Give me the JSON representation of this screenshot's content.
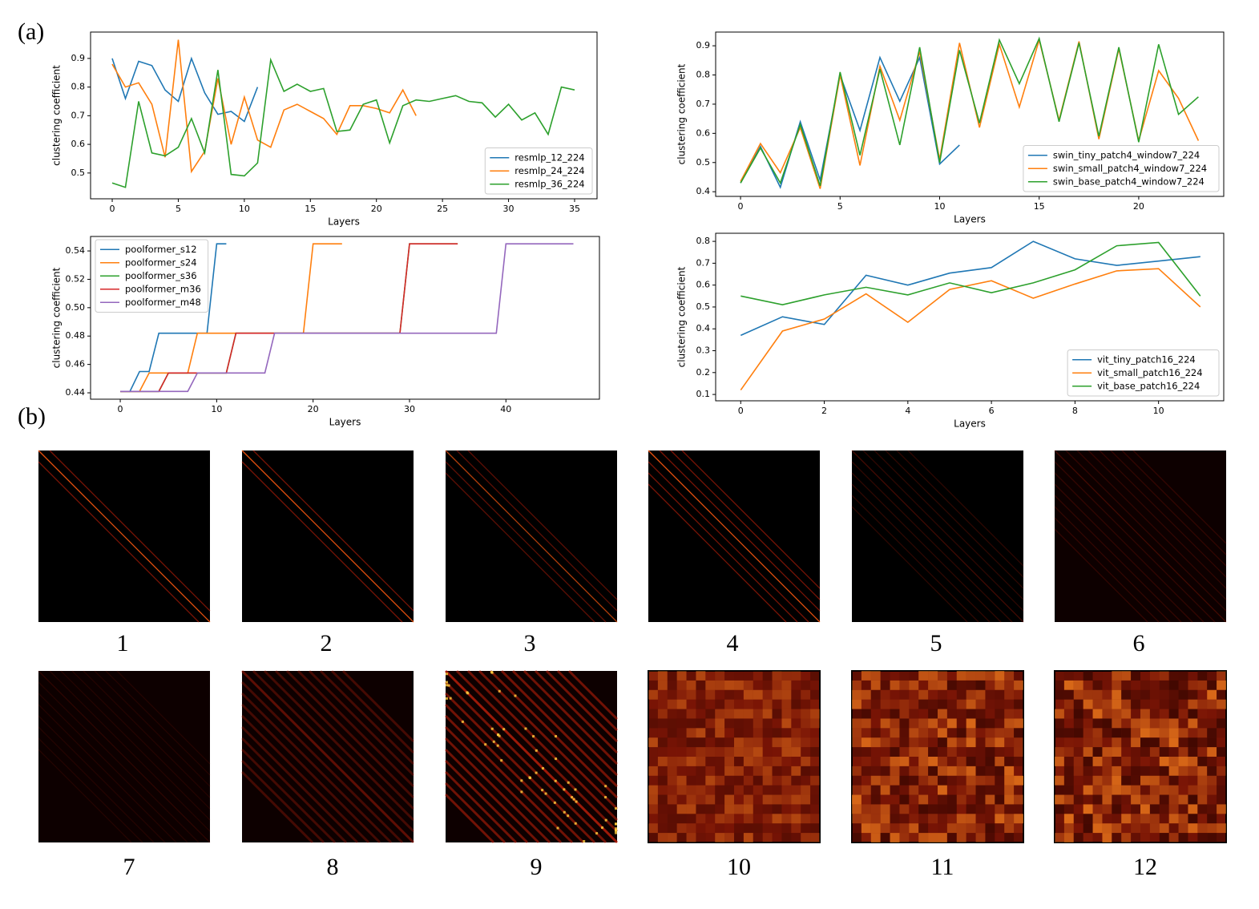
{
  "panel_a_label": "(a)",
  "panel_b_label": "(b)",
  "chart_data": [
    {
      "type": "line",
      "x_label": "Layers",
      "y_label": "clustering coefficient",
      "xlim": [
        -1.64,
        36.7
      ],
      "ylim": [
        0.41,
        0.992
      ],
      "xticks": [
        0,
        5,
        10,
        15,
        20,
        25,
        30,
        35
      ],
      "yticks": [
        0.5,
        0.6,
        0.7,
        0.8,
        0.9
      ],
      "legend": "lower right",
      "series": [
        {
          "name": "resmlp_12_224",
          "color": "#1f77b4",
          "x": [
            0,
            1,
            2,
            3,
            4,
            5,
            6,
            7,
            8,
            9,
            10,
            11
          ],
          "values": [
            0.9,
            0.76,
            0.89,
            0.875,
            0.79,
            0.75,
            0.9,
            0.78,
            0.705,
            0.715,
            0.68,
            0.8
          ]
        },
        {
          "name": "resmlp_24_224",
          "color": "#ff7f0e",
          "x": [
            0,
            1,
            2,
            3,
            4,
            5,
            6,
            7,
            8,
            9,
            10,
            11,
            12,
            13,
            14,
            15,
            16,
            17,
            18,
            19,
            20,
            21,
            22,
            23
          ],
          "values": [
            0.88,
            0.8,
            0.815,
            0.74,
            0.555,
            0.965,
            0.505,
            0.575,
            0.83,
            0.6,
            0.765,
            0.615,
            0.59,
            0.72,
            0.74,
            0.715,
            0.69,
            0.635,
            0.735,
            0.735,
            0.725,
            0.71,
            0.79,
            0.7
          ]
        },
        {
          "name": "resmlp_36_224",
          "color": "#2ca02c",
          "x": [
            0,
            1,
            2,
            3,
            4,
            5,
            6,
            7,
            8,
            9,
            10,
            11,
            12,
            13,
            14,
            15,
            16,
            17,
            18,
            19,
            20,
            21,
            22,
            23,
            24,
            25,
            26,
            27,
            28,
            29,
            30,
            31,
            32,
            33,
            34,
            35
          ],
          "values": [
            0.465,
            0.45,
            0.75,
            0.57,
            0.56,
            0.59,
            0.69,
            0.57,
            0.86,
            0.495,
            0.49,
            0.535,
            0.895,
            0.785,
            0.81,
            0.785,
            0.795,
            0.645,
            0.65,
            0.74,
            0.755,
            0.605,
            0.735,
            0.755,
            0.75,
            0.76,
            0.77,
            0.75,
            0.745,
            0.695,
            0.74,
            0.685,
            0.71,
            0.635,
            0.8,
            0.79
          ]
        }
      ]
    },
    {
      "type": "line",
      "x_label": "Layers",
      "y_label": "clustering coefficient",
      "xlim": [
        -1.25,
        24.27
      ],
      "ylim": [
        0.384,
        0.947
      ],
      "xticks": [
        0,
        5,
        10,
        15,
        20
      ],
      "yticks": [
        0.4,
        0.5,
        0.6,
        0.7,
        0.8,
        0.9
      ],
      "legend": "lower right",
      "series": [
        {
          "name": "swin_tiny_patch4_window7_224",
          "color": "#1f77b4",
          "x": [
            0,
            1,
            2,
            3,
            4,
            5,
            6,
            7,
            8,
            9,
            10,
            11
          ],
          "values": [
            0.43,
            0.555,
            0.415,
            0.64,
            0.44,
            0.8,
            0.61,
            0.86,
            0.71,
            0.86,
            0.495,
            0.56
          ]
        },
        {
          "name": "swin_small_patch4_window7_224",
          "color": "#ff7f0e",
          "x": [
            0,
            1,
            2,
            3,
            4,
            5,
            6,
            7,
            8,
            9,
            10,
            11,
            12,
            13,
            14,
            15,
            16,
            17,
            18,
            19,
            20,
            21,
            22,
            23
          ],
          "values": [
            0.435,
            0.565,
            0.465,
            0.62,
            0.41,
            0.8,
            0.49,
            0.83,
            0.645,
            0.88,
            0.51,
            0.91,
            0.62,
            0.905,
            0.69,
            0.92,
            0.645,
            0.915,
            0.58,
            0.89,
            0.575,
            0.815,
            0.72,
            0.575
          ]
        },
        {
          "name": "swin_base_patch4_window7_224",
          "color": "#2ca02c",
          "x": [
            0,
            1,
            2,
            3,
            4,
            5,
            6,
            7,
            8,
            9,
            10,
            11,
            12,
            13,
            14,
            15,
            16,
            17,
            18,
            19,
            20,
            21,
            22,
            23
          ],
          "values": [
            0.43,
            0.55,
            0.43,
            0.63,
            0.42,
            0.81,
            0.525,
            0.82,
            0.56,
            0.895,
            0.5,
            0.885,
            0.635,
            0.92,
            0.77,
            0.925,
            0.64,
            0.91,
            0.59,
            0.895,
            0.57,
            0.905,
            0.665,
            0.725
          ]
        }
      ]
    },
    {
      "type": "line",
      "x_label": "Layers",
      "y_label": "clustering coefficient",
      "xlim": [
        -3.08,
        49.7
      ],
      "ylim": [
        0.4355,
        0.5502
      ],
      "xticks": [
        0,
        10,
        20,
        30,
        40
      ],
      "yticks": [
        0.44,
        0.46,
        0.48,
        {
          "value": 0.5,
          "label": "0.50"
        },
        0.52,
        0.54
      ],
      "legend": "upper left",
      "series": [
        {
          "name": "poolformer_s12",
          "color": "#1f77b4",
          "x": [
            0,
            1,
            2,
            3,
            4,
            5,
            6,
            7,
            8,
            9,
            10,
            11
          ],
          "values": [
            0.441,
            0.441,
            0.455,
            0.455,
            0.482,
            0.482,
            0.482,
            0.482,
            0.482,
            0.482,
            0.545,
            0.545
          ]
        },
        {
          "name": "poolformer_s24",
          "color": "#ff7f0e",
          "x": [
            0,
            1,
            2,
            3,
            4,
            5,
            6,
            7,
            8,
            9,
            10,
            11,
            12,
            13,
            14,
            15,
            16,
            17,
            18,
            19,
            20,
            21,
            22,
            23
          ],
          "values": [
            0.441,
            0.441,
            0.441,
            0.454,
            0.454,
            0.454,
            0.454,
            0.454,
            0.482,
            0.482,
            0.482,
            0.482,
            0.482,
            0.482,
            0.482,
            0.482,
            0.482,
            0.482,
            0.482,
            0.482,
            0.545,
            0.545,
            0.545,
            0.545
          ]
        },
        {
          "name": "poolformer_s36",
          "color": "#2ca02c",
          "x": [
            0,
            1,
            2,
            3,
            4,
            5,
            6,
            7,
            8,
            9,
            10,
            11,
            12,
            13,
            14,
            15,
            16,
            17,
            18,
            19,
            20,
            21,
            22,
            23,
            24,
            25,
            26,
            27,
            28,
            29,
            30,
            31,
            32,
            33,
            34,
            35
          ],
          "values": [
            0.441,
            0.441,
            0.441,
            0.441,
            0.441,
            0.454,
            0.454,
            0.454,
            0.454,
            0.454,
            0.454,
            0.454,
            0.482,
            0.482,
            0.482,
            0.482,
            0.482,
            0.482,
            0.482,
            0.482,
            0.482,
            0.482,
            0.482,
            0.482,
            0.482,
            0.482,
            0.482,
            0.482,
            0.482,
            0.482,
            0.545,
            0.545,
            0.545,
            0.545,
            0.545,
            0.545
          ]
        },
        {
          "name": "poolformer_m36",
          "color": "#d62728",
          "x": [
            0,
            1,
            2,
            3,
            4,
            5,
            6,
            7,
            8,
            9,
            10,
            11,
            12,
            13,
            14,
            15,
            16,
            17,
            18,
            19,
            20,
            21,
            22,
            23,
            24,
            25,
            26,
            27,
            28,
            29,
            30,
            31,
            32,
            33,
            34,
            35
          ],
          "values": [
            0.441,
            0.441,
            0.441,
            0.441,
            0.441,
            0.454,
            0.454,
            0.454,
            0.454,
            0.454,
            0.454,
            0.454,
            0.482,
            0.482,
            0.482,
            0.482,
            0.482,
            0.482,
            0.482,
            0.482,
            0.482,
            0.482,
            0.482,
            0.482,
            0.482,
            0.482,
            0.482,
            0.482,
            0.482,
            0.482,
            0.545,
            0.545,
            0.545,
            0.545,
            0.545,
            0.545
          ]
        },
        {
          "name": "poolformer_m48",
          "color": "#9467bd",
          "x": [
            0,
            1,
            2,
            3,
            4,
            5,
            6,
            7,
            8,
            9,
            10,
            11,
            12,
            13,
            14,
            15,
            16,
            17,
            18,
            19,
            20,
            21,
            22,
            23,
            24,
            25,
            26,
            27,
            28,
            29,
            30,
            31,
            32,
            33,
            34,
            35,
            36,
            37,
            38,
            39,
            40,
            41,
            42,
            43,
            44,
            45,
            46,
            47
          ],
          "values": [
            0.441,
            0.441,
            0.441,
            0.441,
            0.441,
            0.441,
            0.441,
            0.441,
            0.454,
            0.454,
            0.454,
            0.454,
            0.454,
            0.454,
            0.454,
            0.454,
            0.482,
            0.482,
            0.482,
            0.482,
            0.482,
            0.482,
            0.482,
            0.482,
            0.482,
            0.482,
            0.482,
            0.482,
            0.482,
            0.482,
            0.482,
            0.482,
            0.482,
            0.482,
            0.482,
            0.482,
            0.482,
            0.482,
            0.482,
            0.482,
            0.545,
            0.545,
            0.545,
            0.545,
            0.545,
            0.545,
            0.545,
            0.545
          ]
        }
      ]
    },
    {
      "type": "line",
      "x_label": "Layers",
      "y_label": "clustering coefficient",
      "xlim": [
        -0.6,
        11.56
      ],
      "ylim": [
        0.071,
        0.837
      ],
      "xticks": [
        0,
        2,
        4,
        6,
        8,
        10
      ],
      "yticks": [
        0.1,
        0.2,
        0.3,
        0.4,
        0.5,
        0.6,
        0.7,
        0.8
      ],
      "legend": "lower right",
      "series": [
        {
          "name": "vit_tiny_patch16_224",
          "color": "#1f77b4",
          "x": [
            0,
            1,
            2,
            3,
            4,
            5,
            6,
            7,
            8,
            9,
            10,
            11
          ],
          "values": [
            0.37,
            0.455,
            0.42,
            0.645,
            0.6,
            0.655,
            0.68,
            0.8,
            0.72,
            0.69,
            0.71,
            0.73
          ]
        },
        {
          "name": "vit_small_patch16_224",
          "color": "#ff7f0e",
          "x": [
            0,
            1,
            2,
            3,
            4,
            5,
            6,
            7,
            8,
            9,
            10,
            11
          ],
          "values": [
            0.12,
            0.39,
            0.445,
            0.56,
            0.43,
            0.58,
            0.62,
            0.54,
            0.605,
            0.665,
            0.675,
            0.5
          ]
        },
        {
          "name": "vit_base_patch16_224",
          "color": "#2ca02c",
          "x": [
            0,
            1,
            2,
            3,
            4,
            5,
            6,
            7,
            8,
            9,
            10,
            11
          ],
          "values": [
            0.55,
            0.51,
            0.555,
            0.59,
            0.555,
            0.61,
            0.565,
            0.61,
            0.67,
            0.78,
            0.795,
            0.55
          ]
        }
      ]
    }
  ],
  "heatmaps": {
    "labels": [
      "1",
      "2",
      "3",
      "4",
      "5",
      "6",
      "7",
      "8",
      "9",
      "10",
      "11",
      "12"
    ]
  }
}
